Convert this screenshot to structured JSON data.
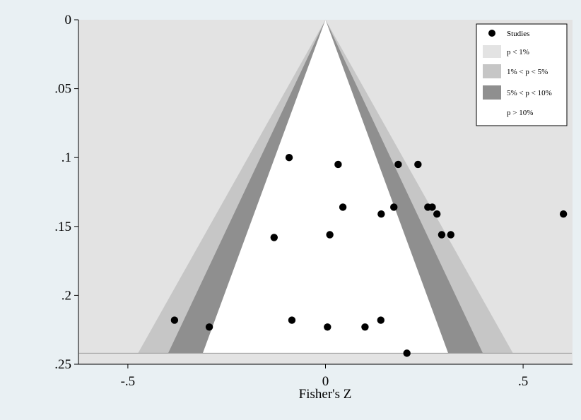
{
  "chart_data": {
    "type": "scatter",
    "title": "",
    "xlabel": "Fisher's Z",
    "ylabel": "",
    "xlim": [
      -0.625,
      0.625
    ],
    "ylim": [
      0,
      0.25
    ],
    "y_reversed": true,
    "x_ticks": [
      {
        "value": -0.5,
        "label": "-.5"
      },
      {
        "value": 0,
        "label": "0"
      },
      {
        "value": 0.5,
        "label": ".5"
      }
    ],
    "y_ticks": [
      {
        "value": 0,
        "label": "0"
      },
      {
        "value": 0.05,
        "label": ".05"
      },
      {
        "value": 0.1,
        "label": ".1"
      },
      {
        "value": 0.15,
        "label": ".15"
      },
      {
        "value": 0.2,
        "label": ".2"
      },
      {
        "value": 0.25,
        "label": ".25"
      }
    ],
    "contour_max_se": 0.242,
    "contours": [
      {
        "label": "p < 1%",
        "color": "#e3e3e3",
        "z": 2.576
      },
      {
        "label": "1% < p < 5%",
        "color": "#c6c6c6",
        "z": 1.96
      },
      {
        "label": "5% < p < 10%",
        "color": "#8f8f8f",
        "z": 1.645
      },
      {
        "label": "p > 10%",
        "color": "#ffffff",
        "z": 0
      }
    ],
    "series": [
      {
        "name": "Studies",
        "color": "#000000",
        "points": [
          {
            "x": -0.092,
            "y": 0.1
          },
          {
            "x": 0.032,
            "y": 0.105
          },
          {
            "x": 0.184,
            "y": 0.105
          },
          {
            "x": 0.234,
            "y": 0.105
          },
          {
            "x": 0.044,
            "y": 0.136
          },
          {
            "x": 0.173,
            "y": 0.136
          },
          {
            "x": 0.259,
            "y": 0.136
          },
          {
            "x": 0.27,
            "y": 0.136
          },
          {
            "x": 0.141,
            "y": 0.141
          },
          {
            "x": 0.282,
            "y": 0.141
          },
          {
            "x": 0.602,
            "y": 0.141
          },
          {
            "x": 0.011,
            "y": 0.156
          },
          {
            "x": 0.294,
            "y": 0.156
          },
          {
            "x": 0.317,
            "y": 0.156
          },
          {
            "x": -0.13,
            "y": 0.158
          },
          {
            "x": -0.382,
            "y": 0.218
          },
          {
            "x": -0.085,
            "y": 0.218
          },
          {
            "x": 0.14,
            "y": 0.218
          },
          {
            "x": -0.294,
            "y": 0.223
          },
          {
            "x": 0.005,
            "y": 0.223
          },
          {
            "x": 0.1,
            "y": 0.223
          },
          {
            "x": 0.206,
            "y": 0.242
          }
        ]
      }
    ],
    "legend": {
      "position": "top-right",
      "entries": [
        "Studies",
        "p < 1%",
        "1% < p < 5%",
        "5% < p < 10%",
        "p > 10%"
      ]
    },
    "grid": false
  }
}
